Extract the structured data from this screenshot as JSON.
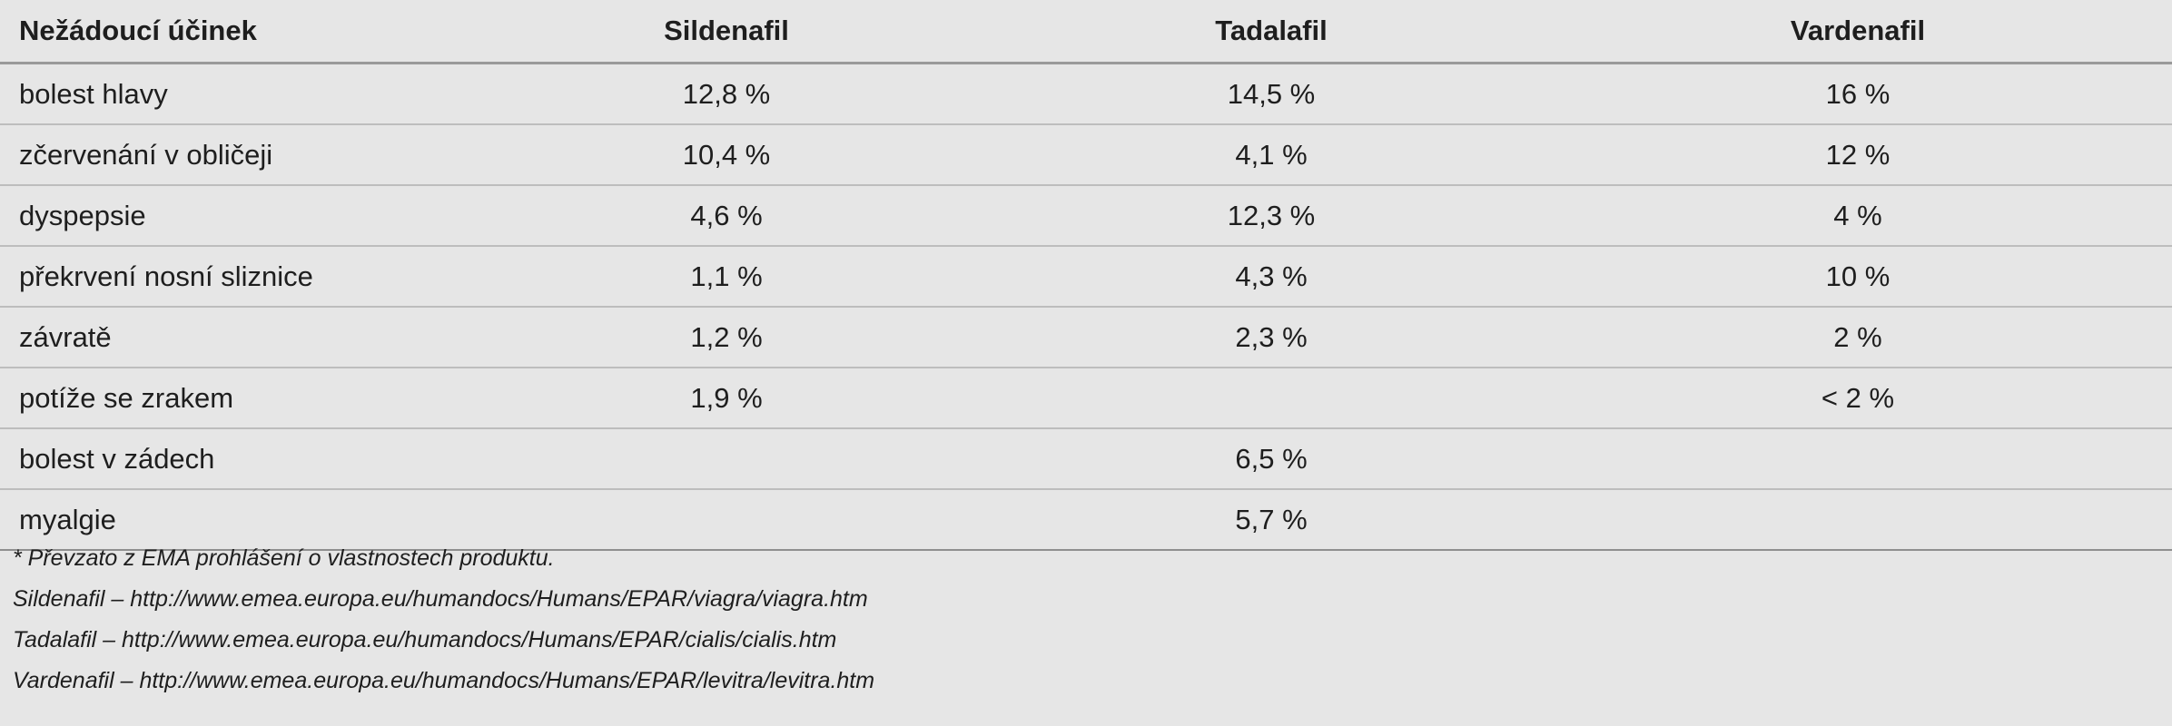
{
  "table": {
    "headers": [
      "Nežádoucí účinek",
      "Sildenafil",
      "Tadalafil",
      "Vardenafil"
    ],
    "rows": [
      [
        "bolest hlavy",
        "12,8 %",
        "14,5 %",
        "16 %"
      ],
      [
        "zčervenání v obličeji",
        "10,4 %",
        "4,1 %",
        "12 %"
      ],
      [
        "dyspepsie",
        "4,6 %",
        "12,3 %",
        "4 %"
      ],
      [
        "překrvení nosní sliznice",
        "1,1 %",
        "4,3 %",
        "10 %"
      ],
      [
        "závratě",
        "1,2 %",
        "2,3 %",
        "2 %"
      ],
      [
        "potíže se zrakem",
        "1,9 %",
        "",
        "< 2 %"
      ],
      [
        "bolest v zádech",
        "",
        "6,5 %",
        ""
      ],
      [
        "myalgie",
        "",
        "5,7 %",
        ""
      ]
    ]
  },
  "footnotes": [
    "* Převzato z EMA prohlášení o vlastnostech produktu.",
    "Sildenafil – http://www.emea.europa.eu/humandocs/Humans/EPAR/viagra/viagra.htm",
    "Tadalafil – http://www.emea.europa.eu/humandocs/Humans/EPAR/cialis/cialis.htm",
    "Vardenafil – http://www.emea.europa.eu/humandocs/Humans/EPAR/levitra/levitra.htm"
  ],
  "colors": {
    "background": "#e6e6e6",
    "text": "#1e1e1e",
    "rule": "#bdbdbd"
  }
}
